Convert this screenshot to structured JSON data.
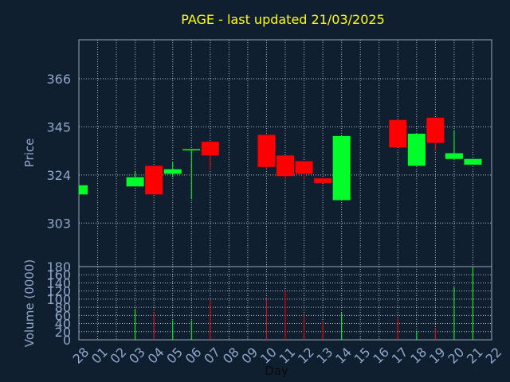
{
  "chart_data": {
    "type": "candlestick",
    "title": "PAGE - last updated 21/03/2025",
    "price_ylabel": "Price",
    "volume_ylabel": "Volume (0000)",
    "xlabel": "Day",
    "colors": {
      "background": "#0f1f30",
      "up": "#00ff2a",
      "down": "#ff0000",
      "grid": "#ffffff",
      "axis_text": "#8fa6c8",
      "title": "#ffff00"
    },
    "x_ticks": [
      "28",
      "01",
      "02",
      "03",
      "04",
      "05",
      "06",
      "07",
      "08",
      "09",
      "10",
      "11",
      "12",
      "13",
      "14",
      "15",
      "16",
      "17",
      "18",
      "19",
      "20",
      "21",
      "22"
    ],
    "price_ticks": [
      303,
      324,
      345,
      366
    ],
    "price_ylim": [
      284,
      383
    ],
    "volume_ticks": [
      0,
      20,
      40,
      60,
      80,
      100,
      120,
      140,
      160,
      180
    ],
    "volume_ylim": [
      0,
      180
    ],
    "candles": [
      {
        "day": "28",
        "open": 315.5,
        "close": 319.5,
        "high": 319.5,
        "low": 315.5,
        "volume": 0
      },
      {
        "day": "03",
        "open": 319.0,
        "close": 323.0,
        "high": 325.5,
        "low": 319.0,
        "volume": 76
      },
      {
        "day": "04",
        "open": 328.0,
        "close": 315.5,
        "high": 328.0,
        "low": 315.5,
        "volume": 68
      },
      {
        "day": "05",
        "open": 324.5,
        "close": 326.5,
        "high": 329.5,
        "low": 323.0,
        "volume": 48
      },
      {
        "day": "06",
        "open": 335.0,
        "close": 335.0,
        "high": 335.0,
        "low": 313.5,
        "volume": 48
      },
      {
        "day": "07",
        "open": 338.5,
        "close": 332.5,
        "high": 338.5,
        "low": 326.5,
        "volume": 98
      },
      {
        "day": "10",
        "open": 341.5,
        "close": 327.5,
        "high": 341.5,
        "low": 326.5,
        "volume": 102
      },
      {
        "day": "11",
        "open": 332.5,
        "close": 323.5,
        "high": 332.5,
        "low": 322.0,
        "volume": 120
      },
      {
        "day": "12",
        "open": 330.0,
        "close": 324.5,
        "high": 330.0,
        "low": 322.0,
        "volume": 58
      },
      {
        "day": "13",
        "open": 322.5,
        "close": 320.5,
        "high": 322.5,
        "low": 320.5,
        "volume": 42
      },
      {
        "day": "14",
        "open": 313.0,
        "close": 341.0,
        "high": 341.0,
        "low": 313.0,
        "volume": 66
      },
      {
        "day": "17",
        "open": 348.0,
        "close": 336.0,
        "high": 348.0,
        "low": 336.0,
        "volume": 52
      },
      {
        "day": "18",
        "open": 328.0,
        "close": 342.0,
        "high": 342.0,
        "low": 328.0,
        "volume": 22
      },
      {
        "day": "19",
        "open": 349.0,
        "close": 338.0,
        "high": 349.0,
        "low": 334.5,
        "volume": 30
      },
      {
        "day": "20",
        "open": 331.0,
        "close": 333.5,
        "high": 343.5,
        "low": 331.0,
        "volume": 130
      },
      {
        "day": "21",
        "open": 328.5,
        "close": 331.0,
        "high": 331.0,
        "low": 328.5,
        "volume": 180
      }
    ]
  }
}
